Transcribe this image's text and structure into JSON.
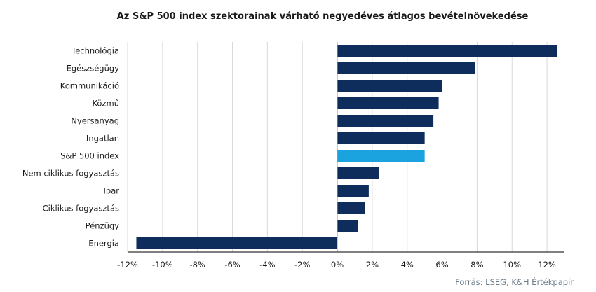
{
  "chart_data": {
    "type": "bar",
    "orientation": "horizontal",
    "title": "Az S&P 500 index szektorainak várható negyedéves átlagos bevételnövekedése",
    "categories": [
      "Technológia",
      "Egészségügy",
      "Kommunikáció",
      "Közmű",
      "Nyersanyag",
      "Ingatlan",
      "S&P 500 index",
      "Nem ciklikus fogyasztás",
      "Ipar",
      "Ciklikus fogyasztás",
      "Pénzügy",
      "Energia"
    ],
    "values": [
      12.6,
      7.9,
      6.0,
      5.8,
      5.5,
      5.0,
      5.0,
      2.4,
      1.8,
      1.6,
      1.2,
      -11.5
    ],
    "highlight_index": 6,
    "colors": {
      "bar": "#0f2d5c",
      "highlight": "#1ba3e0",
      "grid": "#d9d9d9",
      "axis": "#000000",
      "text": "#1a1a1a"
    },
    "xlim": [
      -12,
      13
    ],
    "x_ticks": [
      -12,
      -10,
      -8,
      -6,
      -4,
      -2,
      0,
      2,
      4,
      6,
      8,
      10,
      12
    ],
    "x_tick_labels": [
      "-12%",
      "-10%",
      "-8%",
      "-6%",
      "-4%",
      "-2%",
      "0%",
      "2%",
      "4%",
      "6%",
      "8%",
      "10%",
      "12%"
    ],
    "grid": true,
    "source": "Forrás: LSEG, K&H Értékpapír"
  }
}
